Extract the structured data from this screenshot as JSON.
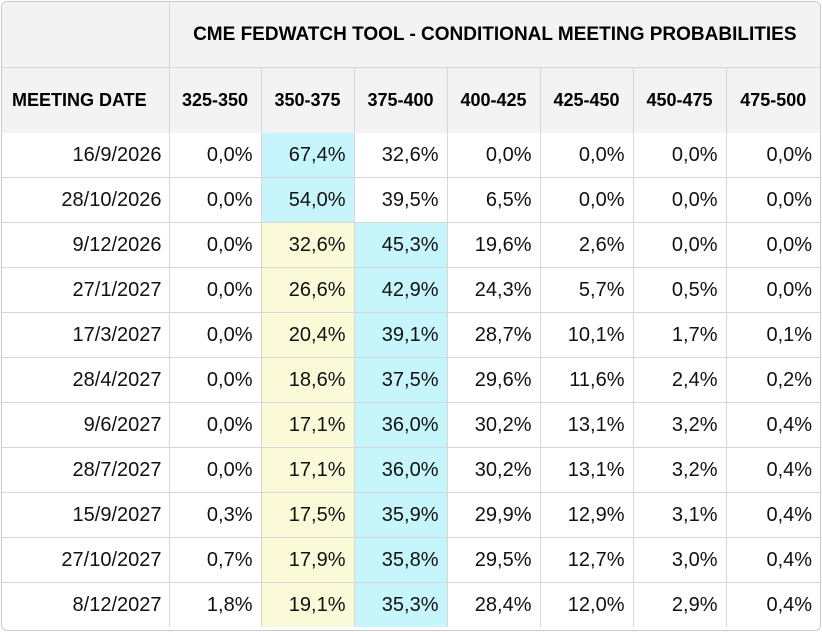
{
  "title": "CME FEDWATCH TOOL - CONDITIONAL MEETING PROBABILITIES",
  "columns": {
    "date": "MEETING DATE",
    "ranges": [
      "325-350",
      "350-375",
      "375-400",
      "400-425",
      "425-450",
      "450-475",
      "475-500"
    ]
  },
  "colors": {
    "yellow": "#fbfad8",
    "cyan": "#c6f6fb",
    "header_bg": "#f3f3f3"
  },
  "rows": [
    {
      "date": "16/9/2026",
      "values": [
        "0,0%",
        "67,4%",
        "32,6%",
        "0,0%",
        "0,0%",
        "0,0%",
        "0,0%"
      ],
      "hl": [
        "",
        "cyan",
        "",
        "",
        "",
        "",
        ""
      ]
    },
    {
      "date": "28/10/2026",
      "values": [
        "0,0%",
        "54,0%",
        "39,5%",
        "6,5%",
        "0,0%",
        "0,0%",
        "0,0%"
      ],
      "hl": [
        "",
        "cyan",
        "",
        "",
        "",
        "",
        ""
      ]
    },
    {
      "date": "9/12/2026",
      "values": [
        "0,0%",
        "32,6%",
        "45,3%",
        "19,6%",
        "2,6%",
        "0,0%",
        "0,0%"
      ],
      "hl": [
        "",
        "yellow",
        "cyan",
        "",
        "",
        "",
        ""
      ]
    },
    {
      "date": "27/1/2027",
      "values": [
        "0,0%",
        "26,6%",
        "42,9%",
        "24,3%",
        "5,7%",
        "0,5%",
        "0,0%"
      ],
      "hl": [
        "",
        "yellow",
        "cyan",
        "",
        "",
        "",
        ""
      ]
    },
    {
      "date": "17/3/2027",
      "values": [
        "0,0%",
        "20,4%",
        "39,1%",
        "28,7%",
        "10,1%",
        "1,7%",
        "0,1%"
      ],
      "hl": [
        "",
        "yellow",
        "cyan",
        "",
        "",
        "",
        ""
      ]
    },
    {
      "date": "28/4/2027",
      "values": [
        "0,0%",
        "18,6%",
        "37,5%",
        "29,6%",
        "11,6%",
        "2,4%",
        "0,2%"
      ],
      "hl": [
        "",
        "yellow",
        "cyan",
        "",
        "",
        "",
        ""
      ]
    },
    {
      "date": "9/6/2027",
      "values": [
        "0,0%",
        "17,1%",
        "36,0%",
        "30,2%",
        "13,1%",
        "3,2%",
        "0,4%"
      ],
      "hl": [
        "",
        "yellow",
        "cyan",
        "",
        "",
        "",
        ""
      ]
    },
    {
      "date": "28/7/2027",
      "values": [
        "0,0%",
        "17,1%",
        "36,0%",
        "30,2%",
        "13,1%",
        "3,2%",
        "0,4%"
      ],
      "hl": [
        "",
        "yellow",
        "cyan",
        "",
        "",
        "",
        ""
      ]
    },
    {
      "date": "15/9/2027",
      "values": [
        "0,3%",
        "17,5%",
        "35,9%",
        "29,9%",
        "12,9%",
        "3,1%",
        "0,4%"
      ],
      "hl": [
        "",
        "yellow",
        "cyan",
        "",
        "",
        "",
        ""
      ]
    },
    {
      "date": "27/10/2027",
      "values": [
        "0,7%",
        "17,9%",
        "35,8%",
        "29,5%",
        "12,7%",
        "3,0%",
        "0,4%"
      ],
      "hl": [
        "",
        "yellow",
        "cyan",
        "",
        "",
        "",
        ""
      ]
    },
    {
      "date": "8/12/2027",
      "values": [
        "1,8%",
        "19,1%",
        "35,3%",
        "28,4%",
        "12,0%",
        "2,9%",
        "0,4%"
      ],
      "hl": [
        "",
        "yellow",
        "cyan",
        "",
        "",
        "",
        ""
      ]
    }
  ]
}
